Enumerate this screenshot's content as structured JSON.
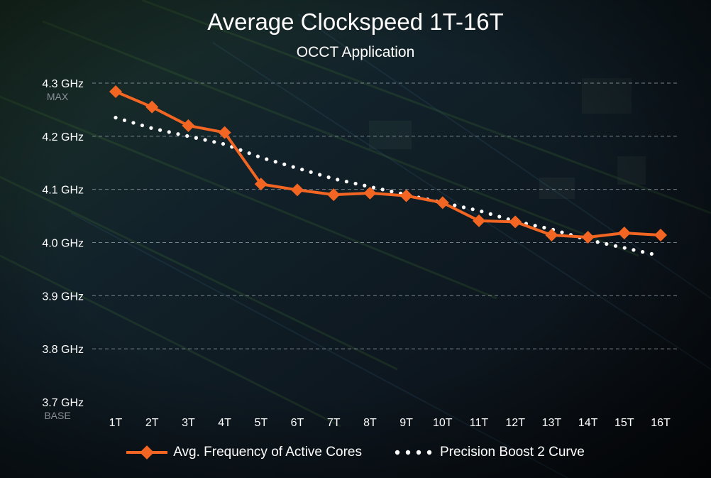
{
  "title": "Average Clockspeed 1T-16T",
  "subtitle": "OCCT Application",
  "colors": {
    "series_freq": "#f26522",
    "series_curve": "#ffffff",
    "grid": "#9aa3ad",
    "text": "#ffffff",
    "annotation": "#8a8f96"
  },
  "chart_data": {
    "type": "line",
    "title": "Average Clockspeed 1T-16T",
    "subtitle": "OCCT Application",
    "xlabel": "",
    "ylabel": "",
    "categories": [
      "1T",
      "2T",
      "3T",
      "4T",
      "5T",
      "6T",
      "7T",
      "8T",
      "9T",
      "10T",
      "11T",
      "12T",
      "13T",
      "14T",
      "15T",
      "16T"
    ],
    "ylim": [
      3.7,
      4.3
    ],
    "y_ticks": [
      {
        "value": 4.3,
        "label": "4.3 GHz"
      },
      {
        "value": 4.2,
        "label": "4.2 GHz"
      },
      {
        "value": 4.1,
        "label": "4.1 GHz"
      },
      {
        "value": 4.0,
        "label": "4.0 GHz"
      },
      {
        "value": 3.9,
        "label": "3.9 GHz"
      },
      {
        "value": 3.8,
        "label": "3.8 GHz"
      },
      {
        "value": 3.7,
        "label": "3.7 GHz"
      }
    ],
    "annotations": [
      {
        "value": 4.3,
        "text": "MAX"
      },
      {
        "value": 3.7,
        "text": "BASE"
      }
    ],
    "grid": true,
    "legend_position": "bottom",
    "series": [
      {
        "name": "Avg. Frequency of Active Cores",
        "style": "solid-diamond",
        "color": "#f26522",
        "values": [
          4.284,
          4.255,
          4.22,
          4.207,
          4.11,
          4.099,
          4.09,
          4.093,
          4.088,
          4.075,
          4.041,
          4.039,
          4.014,
          4.01,
          4.018,
          4.014
        ]
      },
      {
        "name": "Precision Boost 2 Curve",
        "style": "dotted",
        "color": "#ffffff",
        "values": [
          4.235,
          4.215,
          4.2,
          4.185,
          4.16,
          4.14,
          4.12,
          4.105,
          4.09,
          4.075,
          4.06,
          4.04,
          4.025,
          4.005,
          3.99,
          3.975
        ]
      }
    ]
  }
}
